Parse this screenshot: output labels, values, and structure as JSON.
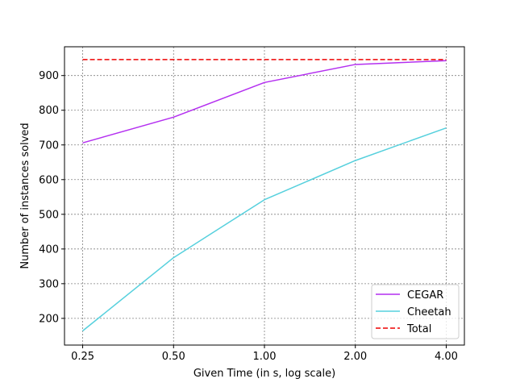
{
  "chart_data": {
    "type": "line",
    "title": "",
    "xlabel": "Given Time (in s, log scale)",
    "ylabel": "Number of instances solved",
    "x_scale": "log2",
    "x": [
      0.25,
      0.5,
      1.0,
      2.0,
      4.0
    ],
    "x_tick_labels": [
      "0.25",
      "0.50",
      "1.00",
      "2.00",
      "4.00"
    ],
    "y_ticks": [
      200,
      300,
      400,
      500,
      600,
      700,
      800,
      900
    ],
    "ylim": [
      123,
      983
    ],
    "grid": true,
    "legend_position": "lower-right",
    "series": [
      {
        "name": "CEGAR",
        "color": "#b42ff0",
        "style": "solid",
        "values": [
          706,
          780,
          880,
          932,
          943
        ]
      },
      {
        "name": "Cheetah",
        "color": "#56d0dd",
        "style": "solid",
        "values": [
          164,
          375,
          542,
          655,
          749
        ]
      },
      {
        "name": "Total",
        "color": "#ee0000",
        "style": "dashed",
        "values": [
          946,
          946,
          946,
          946,
          946
        ]
      }
    ]
  }
}
